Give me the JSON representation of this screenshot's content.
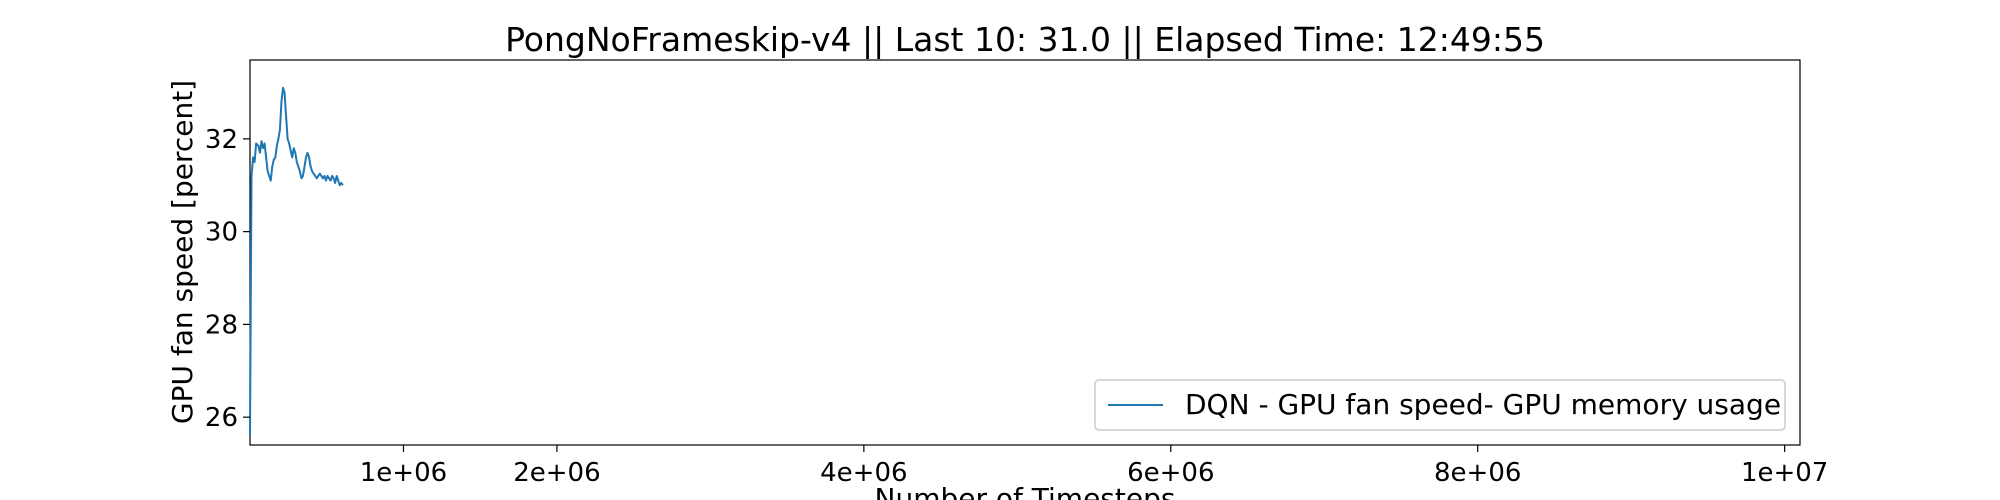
{
  "chart_data": {
    "type": "line",
    "title": "PongNoFrameskip-v4 || Last 10: 31.0 || Elapsed Time: 12:49:55",
    "xlabel": "Number of Timesteps",
    "ylabel": "GPU fan speed [percent]",
    "xlim": [
      0,
      10100000
    ],
    "ylim": [
      25.4,
      33.7
    ],
    "x_ticks": [
      1000000,
      2000000,
      4000000,
      6000000,
      8000000,
      10000000
    ],
    "x_tick_labels": [
      "1e+06",
      "2e+06",
      "4e+06",
      "6e+06",
      "8e+06",
      "1e+07"
    ],
    "y_ticks": [
      26,
      28,
      30,
      32
    ],
    "y_tick_labels": [
      "26",
      "28",
      "30",
      "32"
    ],
    "legend_position": "bottom-right",
    "grid": false,
    "series": [
      {
        "name": "DQN - GPU fan speed- GPU memory usage",
        "color": "#1f77b4",
        "x": [
          0,
          5000,
          10000,
          20000,
          30000,
          40000,
          55000,
          65000,
          75000,
          85000,
          95000,
          105000,
          115000,
          125000,
          135000,
          145000,
          155000,
          165000,
          175000,
          185000,
          195000,
          205000,
          215000,
          225000,
          235000,
          245000,
          255000,
          265000,
          275000,
          285000,
          295000,
          305000,
          315000,
          325000,
          335000,
          345000,
          355000,
          365000,
          375000,
          385000,
          395000,
          405000,
          415000,
          425000,
          435000,
          445000,
          455000,
          465000,
          475000,
          485000,
          495000,
          505000,
          515000,
          525000,
          535000,
          545000,
          555000,
          565000,
          575000,
          585000,
          595000,
          605000
        ],
        "y": [
          25.6,
          28.5,
          31.2,
          31.6,
          31.5,
          31.9,
          31.85,
          31.7,
          31.95,
          31.8,
          31.9,
          31.6,
          31.3,
          31.2,
          31.1,
          31.4,
          31.55,
          31.6,
          31.85,
          32.0,
          32.2,
          32.8,
          33.1,
          33.0,
          32.5,
          32.0,
          31.9,
          31.75,
          31.6,
          31.8,
          31.7,
          31.5,
          31.4,
          31.3,
          31.15,
          31.2,
          31.4,
          31.6,
          31.7,
          31.6,
          31.4,
          31.3,
          31.25,
          31.2,
          31.15,
          31.2,
          31.25,
          31.2,
          31.15,
          31.2,
          31.1,
          31.2,
          31.15,
          31.1,
          31.2,
          31.15,
          31.05,
          31.2,
          31.1,
          31.0,
          31.05,
          31.0
        ]
      }
    ]
  }
}
